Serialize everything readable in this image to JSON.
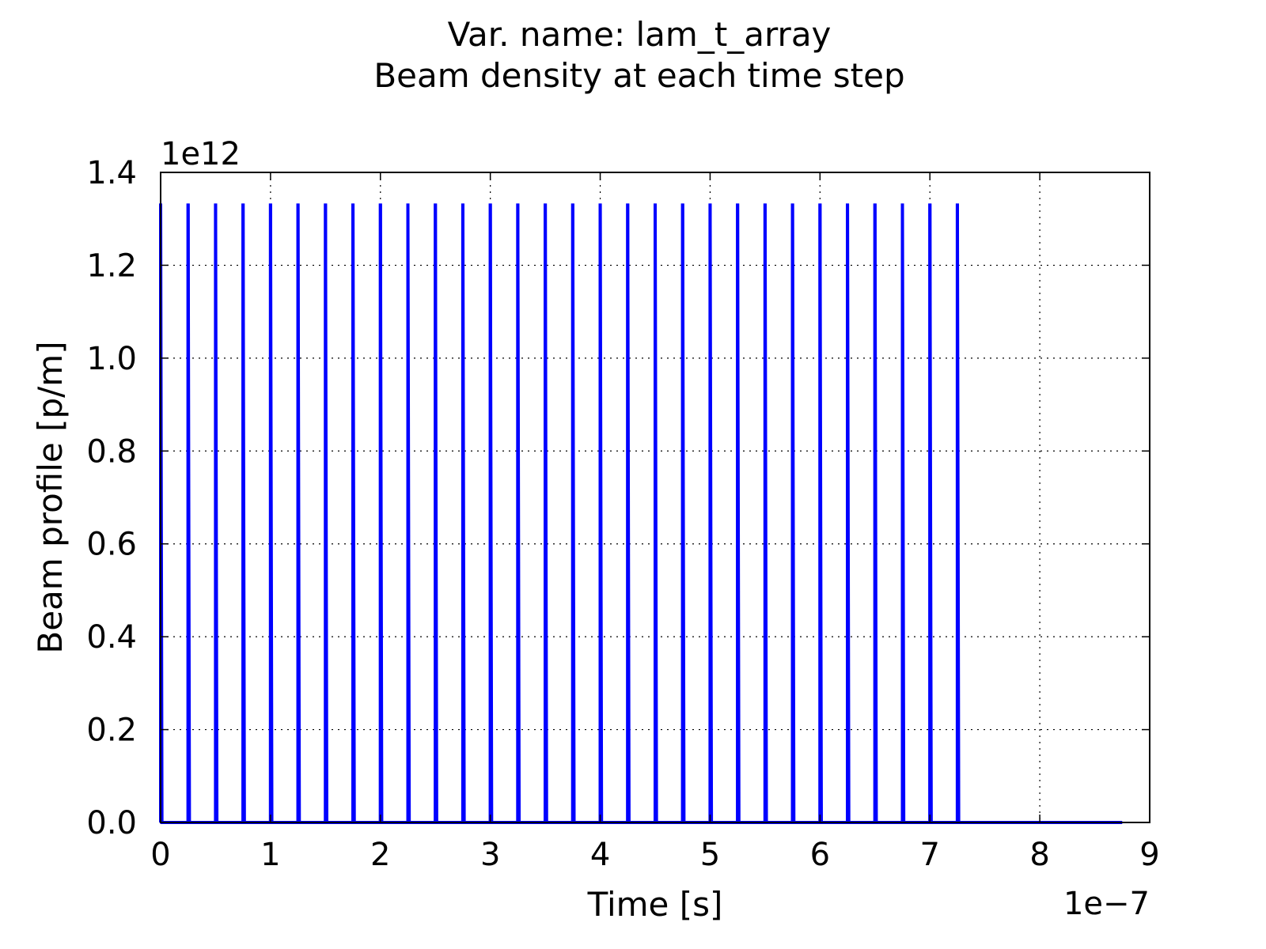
{
  "chart_data": {
    "type": "line",
    "title": "Var. name: lam_t_array",
    "subtitle": "Beam density at each time step",
    "xlabel": "Time [s]",
    "ylabel": "Beam profile [p/m]",
    "x_multiplier": "1e−7",
    "y_multiplier": "1e12",
    "xlim": [
      0,
      9
    ],
    "ylim": [
      0,
      1.4
    ],
    "x_ticks": [
      "0",
      "1",
      "2",
      "3",
      "4",
      "5",
      "6",
      "7",
      "8",
      "9"
    ],
    "y_ticks": [
      "0.0",
      "0.2",
      "0.4",
      "0.6",
      "0.8",
      "1.0",
      "1.2",
      "1.4"
    ],
    "grid": true,
    "series": [
      {
        "color": "#0000ff",
        "pulse_height": 1.333,
        "pulse_times": [
          0.0,
          0.25,
          0.5,
          0.75,
          1.0,
          1.25,
          1.5,
          1.75,
          2.0,
          2.25,
          2.5,
          2.75,
          3.0,
          3.25,
          3.5,
          3.75,
          4.0,
          4.25,
          4.5,
          4.75,
          5.0,
          5.25,
          5.5,
          5.75,
          6.0,
          6.25,
          6.5,
          6.75,
          7.0,
          7.25
        ],
        "x_end": 8.75,
        "baseline": 0.0
      }
    ]
  }
}
